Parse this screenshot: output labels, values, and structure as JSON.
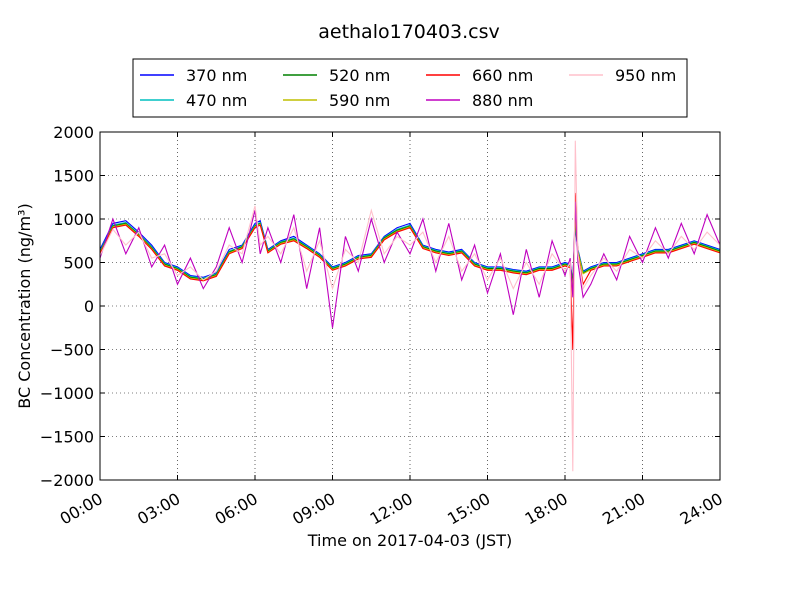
{
  "chart_data": {
    "type": "line",
    "title": "aethalo170403.csv",
    "xlabel": "Time on 2017-04-03 (JST)",
    "ylabel": "BC Concentration (ng/m³)",
    "ylim": [
      -2000,
      2000
    ],
    "xlim_hours": [
      0,
      24
    ],
    "x_ticks": [
      "00:00",
      "03:00",
      "06:00",
      "09:00",
      "12:00",
      "15:00",
      "18:00",
      "21:00",
      "24:00"
    ],
    "y_ticks": [
      "2000",
      "1500",
      "1000",
      "500",
      "0",
      "−500",
      "−1000",
      "−1500",
      "−2000"
    ],
    "grid": true,
    "legend_position": "top",
    "x_hours": [
      0.0,
      0.5,
      1.0,
      1.5,
      2.0,
      2.5,
      3.0,
      3.5,
      4.0,
      4.5,
      5.0,
      5.5,
      6.0,
      6.2,
      6.5,
      7.0,
      7.5,
      8.0,
      8.5,
      9.0,
      9.5,
      10.0,
      10.5,
      11.0,
      11.5,
      12.0,
      12.5,
      13.0,
      13.5,
      14.0,
      14.5,
      15.0,
      15.5,
      16.0,
      16.5,
      17.0,
      17.5,
      18.0,
      18.2,
      18.3,
      18.4,
      18.5,
      18.7,
      19.0,
      19.5,
      20.0,
      20.5,
      21.0,
      21.5,
      22.0,
      22.5,
      23.0,
      23.5,
      24.0
    ],
    "series": [
      {
        "name": "370 nm",
        "color": "#0000ff",
        "values": [
          650,
          950,
          980,
          850,
          700,
          500,
          450,
          350,
          330,
          380,
          650,
          700,
          950,
          980,
          650,
          750,
          800,
          700,
          600,
          450,
          500,
          580,
          600,
          800,
          900,
          950,
          700,
          650,
          620,
          650,
          500,
          450,
          450,
          420,
          400,
          450,
          450,
          500,
          480,
          300,
          900,
          650,
          400,
          450,
          500,
          500,
          550,
          600,
          650,
          650,
          700,
          750,
          700,
          650
        ]
      },
      {
        "name": "470 nm",
        "color": "#00bfbf",
        "values": [
          630,
          930,
          960,
          830,
          680,
          490,
          440,
          340,
          320,
          370,
          630,
          690,
          930,
          960,
          640,
          740,
          780,
          690,
          590,
          440,
          490,
          570,
          590,
          790,
          880,
          930,
          690,
          640,
          610,
          640,
          490,
          440,
          440,
          410,
          390,
          440,
          440,
          490,
          470,
          280,
          950,
          640,
          390,
          440,
          490,
          490,
          540,
          590,
          640,
          640,
          690,
          740,
          690,
          640
        ]
      },
      {
        "name": "520 nm",
        "color": "#008000",
        "values": [
          620,
          920,
          950,
          820,
          670,
          480,
          430,
          330,
          310,
          360,
          620,
          680,
          920,
          950,
          630,
          730,
          770,
          680,
          580,
          430,
          480,
          560,
          580,
          780,
          870,
          920,
          680,
          630,
          600,
          630,
          480,
          430,
          430,
          400,
          380,
          430,
          430,
          480,
          460,
          270,
          1000,
          630,
          380,
          430,
          480,
          480,
          530,
          580,
          630,
          630,
          680,
          730,
          680,
          630
        ]
      },
      {
        "name": "590 nm",
        "color": "#bfbf00",
        "values": [
          610,
          910,
          940,
          810,
          660,
          470,
          420,
          320,
          300,
          350,
          610,
          670,
          910,
          940,
          620,
          720,
          760,
          670,
          570,
          420,
          470,
          550,
          570,
          770,
          860,
          910,
          670,
          620,
          590,
          620,
          470,
          420,
          420,
          390,
          370,
          420,
          420,
          470,
          450,
          200,
          1050,
          620,
          370,
          420,
          470,
          470,
          520,
          570,
          620,
          620,
          670,
          720,
          670,
          620
        ]
      },
      {
        "name": "660 nm",
        "color": "#ff0000",
        "values": [
          600,
          900,
          930,
          800,
          650,
          460,
          410,
          310,
          290,
          340,
          600,
          660,
          900,
          930,
          610,
          710,
          750,
          660,
          560,
          410,
          460,
          540,
          560,
          760,
          850,
          900,
          660,
          610,
          580,
          610,
          460,
          410,
          410,
          380,
          360,
          410,
          410,
          460,
          440,
          -500,
          1300,
          610,
          250,
          410,
          460,
          460,
          510,
          560,
          610,
          610,
          660,
          710,
          660,
          610
        ]
      },
      {
        "name": "880 nm",
        "color": "#bf00bf",
        "values": [
          550,
          1000,
          600,
          900,
          450,
          700,
          250,
          550,
          200,
          450,
          900,
          500,
          1100,
          600,
          900,
          500,
          1050,
          200,
          900,
          -250,
          800,
          400,
          1000,
          500,
          850,
          600,
          1000,
          400,
          950,
          300,
          700,
          150,
          600,
          -100,
          650,
          100,
          750,
          350,
          550,
          100,
          1200,
          500,
          100,
          250,
          600,
          300,
          800,
          500,
          900,
          550,
          950,
          600,
          1050,
          700
        ]
      },
      {
        "name": "950 nm",
        "color": "#ffc0cb",
        "values": [
          580,
          880,
          700,
          850,
          550,
          600,
          350,
          450,
          300,
          400,
          700,
          600,
          1150,
          700,
          800,
          600,
          900,
          400,
          750,
          200,
          650,
          500,
          1100,
          600,
          800,
          700,
          850,
          500,
          800,
          400,
          600,
          300,
          550,
          200,
          500,
          250,
          600,
          400,
          500,
          -1900,
          1900,
          600,
          200,
          350,
          550,
          400,
          650,
          550,
          750,
          600,
          800,
          650,
          850,
          700
        ]
      }
    ]
  }
}
